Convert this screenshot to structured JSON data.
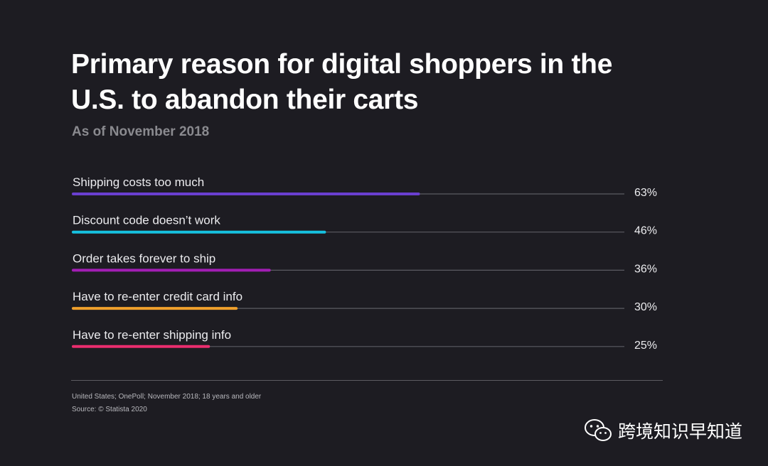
{
  "chart_data": {
    "type": "bar",
    "orientation": "horizontal",
    "title": "Primary reason for digital shoppers in the U.S. to abandon their carts",
    "subtitle": "As of November 2018",
    "categories": [
      "Shipping costs too much",
      "Discount code doesn’t work",
      "Order takes forever to ship",
      "Have to re-enter credit card info",
      "Have to re-enter shipping info"
    ],
    "values": [
      63,
      46,
      36,
      30,
      25
    ],
    "value_labels": [
      "63%",
      "46%",
      "36%",
      "30%",
      "25%"
    ],
    "colors": [
      "#6a3fd1",
      "#16c1e0",
      "#a21eb4",
      "#f0a02c",
      "#ea2d6e"
    ],
    "track_color": "#5c5b62",
    "xlim": [
      0,
      100
    ],
    "xlabel": "",
    "ylabel": "",
    "legend": "none",
    "grid": false
  },
  "footnotes": {
    "note": "United States; OnePoll; November 2018; 18 years and older",
    "source": "Source: © Statista 2020"
  },
  "watermark": {
    "text": "跨境知识早知道",
    "icon": "wechat-icon"
  }
}
